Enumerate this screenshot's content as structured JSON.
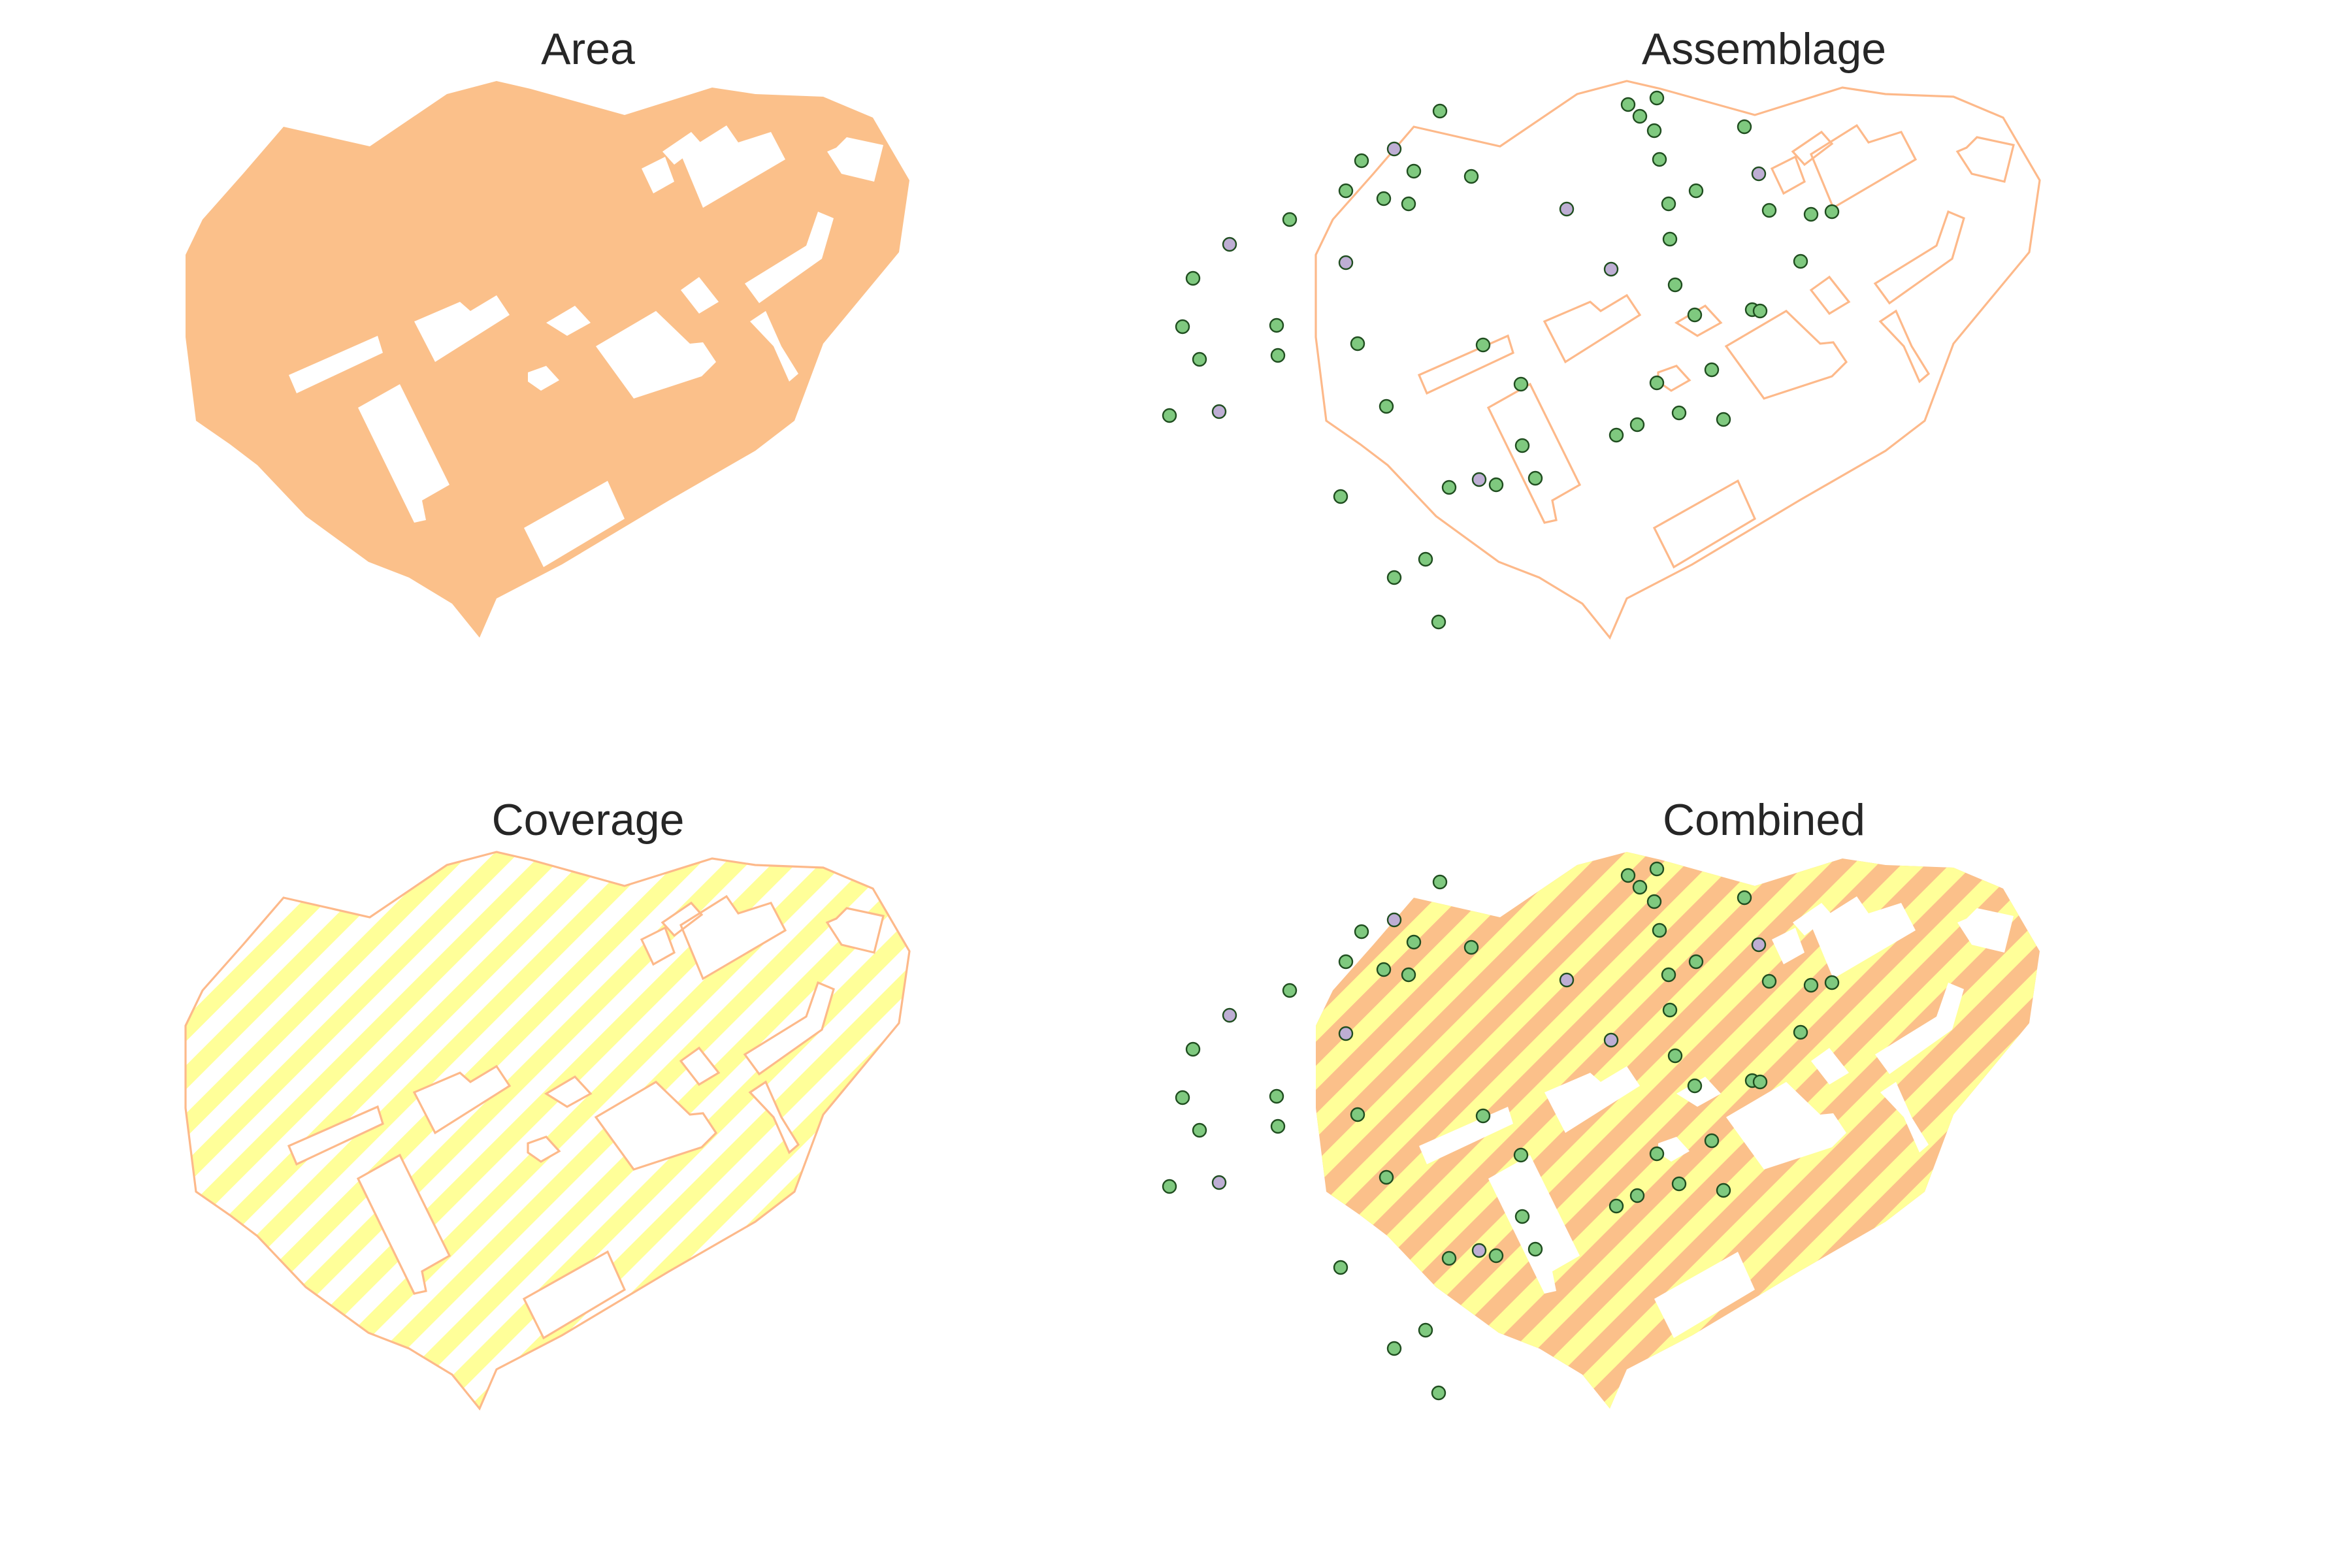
{
  "colors": {
    "area_fill": "#fbc08a",
    "outline": "#fdb98a",
    "hatch": "#ffff99",
    "point_green": "#7fc97f",
    "point_purple": "#beaed4",
    "point_edge": "#1f4d1f",
    "background": "#ffffff"
  },
  "panels": [
    {
      "title": "Area"
    },
    {
      "title": "Assemblage"
    },
    {
      "title": "Coverage"
    },
    {
      "title": "Combined"
    }
  ]
}
